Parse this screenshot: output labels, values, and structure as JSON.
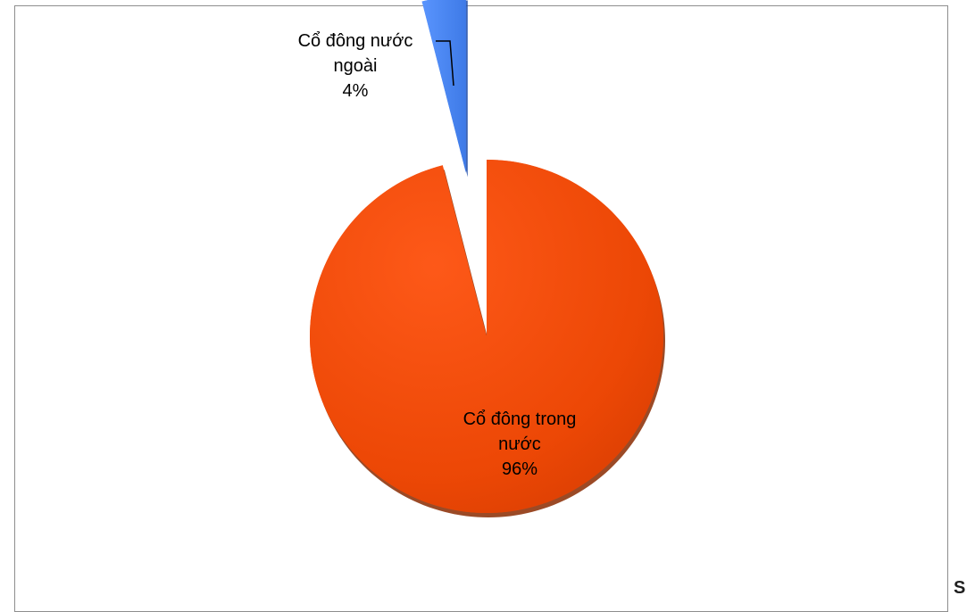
{
  "chart_data": {
    "type": "pie",
    "title": "",
    "slices": [
      {
        "label": "Cổ đông trong nước",
        "label_lines": [
          "Cổ đông trong",
          "nước"
        ],
        "value": 96,
        "value_label": "96%",
        "color": "#f04c0a",
        "exploded": false
      },
      {
        "label": "Cổ đông nước ngoài",
        "label_lines": [
          "Cổ đông nước",
          "ngoài"
        ],
        "value": 4,
        "value_label": "4%",
        "color": "#4a86ef",
        "exploded": true
      }
    ],
    "legend": "none"
  },
  "corner_text": "S"
}
